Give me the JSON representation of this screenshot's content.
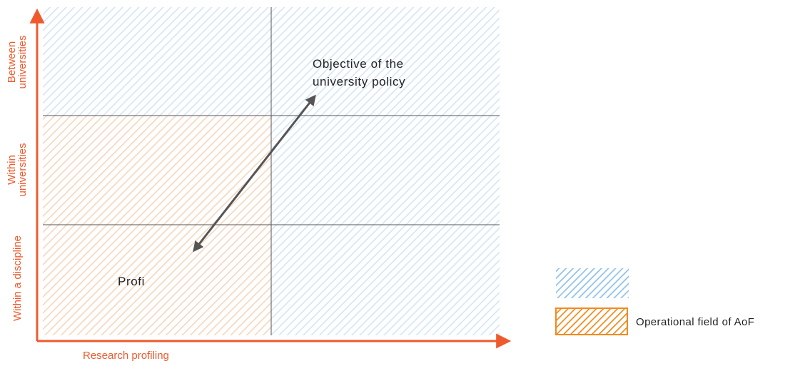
{
  "colors": {
    "axis": "#ee5a2c",
    "blue_hatch": "#8ec1ea",
    "orange_hatch": "#f0b07a",
    "orange_legend": "#f08a1c",
    "grid_line": "#555555",
    "arrow": "#555555"
  },
  "y_axis_labels": {
    "top": {
      "line1": "Between",
      "line2": "universities"
    },
    "middle": {
      "line1": "Within",
      "line2": "universities"
    },
    "bottom": {
      "line1": "Within a discipline"
    }
  },
  "x_axis_label": "Research profiling",
  "objective_text": {
    "line1": "Objective of the",
    "line2": "university policy"
  },
  "profi_text": "Profi",
  "legend": {
    "blue_label": "",
    "orange_label": "Operational field of AoF"
  }
}
